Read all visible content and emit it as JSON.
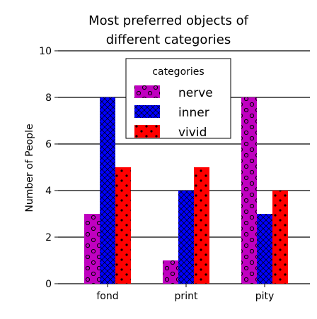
{
  "chart_data": {
    "type": "bar",
    "title_lines": [
      "Most preferred objects of",
      "different categories"
    ],
    "xlabel": "",
    "ylabel": "Number of People",
    "categories": [
      "fond",
      "print",
      "pity"
    ],
    "yticks": [
      "0",
      "2",
      "4",
      "6",
      "8",
      "10"
    ],
    "ylim": [
      0,
      10
    ],
    "grid": true,
    "legend": {
      "title": "categories",
      "placement": "top-center"
    },
    "series": [
      {
        "name": "nerve",
        "color": "#c000c0",
        "pattern": "circles",
        "values": [
          3,
          1,
          8
        ]
      },
      {
        "name": "inner",
        "color": "#0000ff",
        "pattern": "crosshatch",
        "values": [
          8,
          4,
          3
        ]
      },
      {
        "name": "vivid",
        "color": "#ff0000",
        "pattern": "dots",
        "values": [
          5,
          5,
          4
        ]
      }
    ]
  }
}
